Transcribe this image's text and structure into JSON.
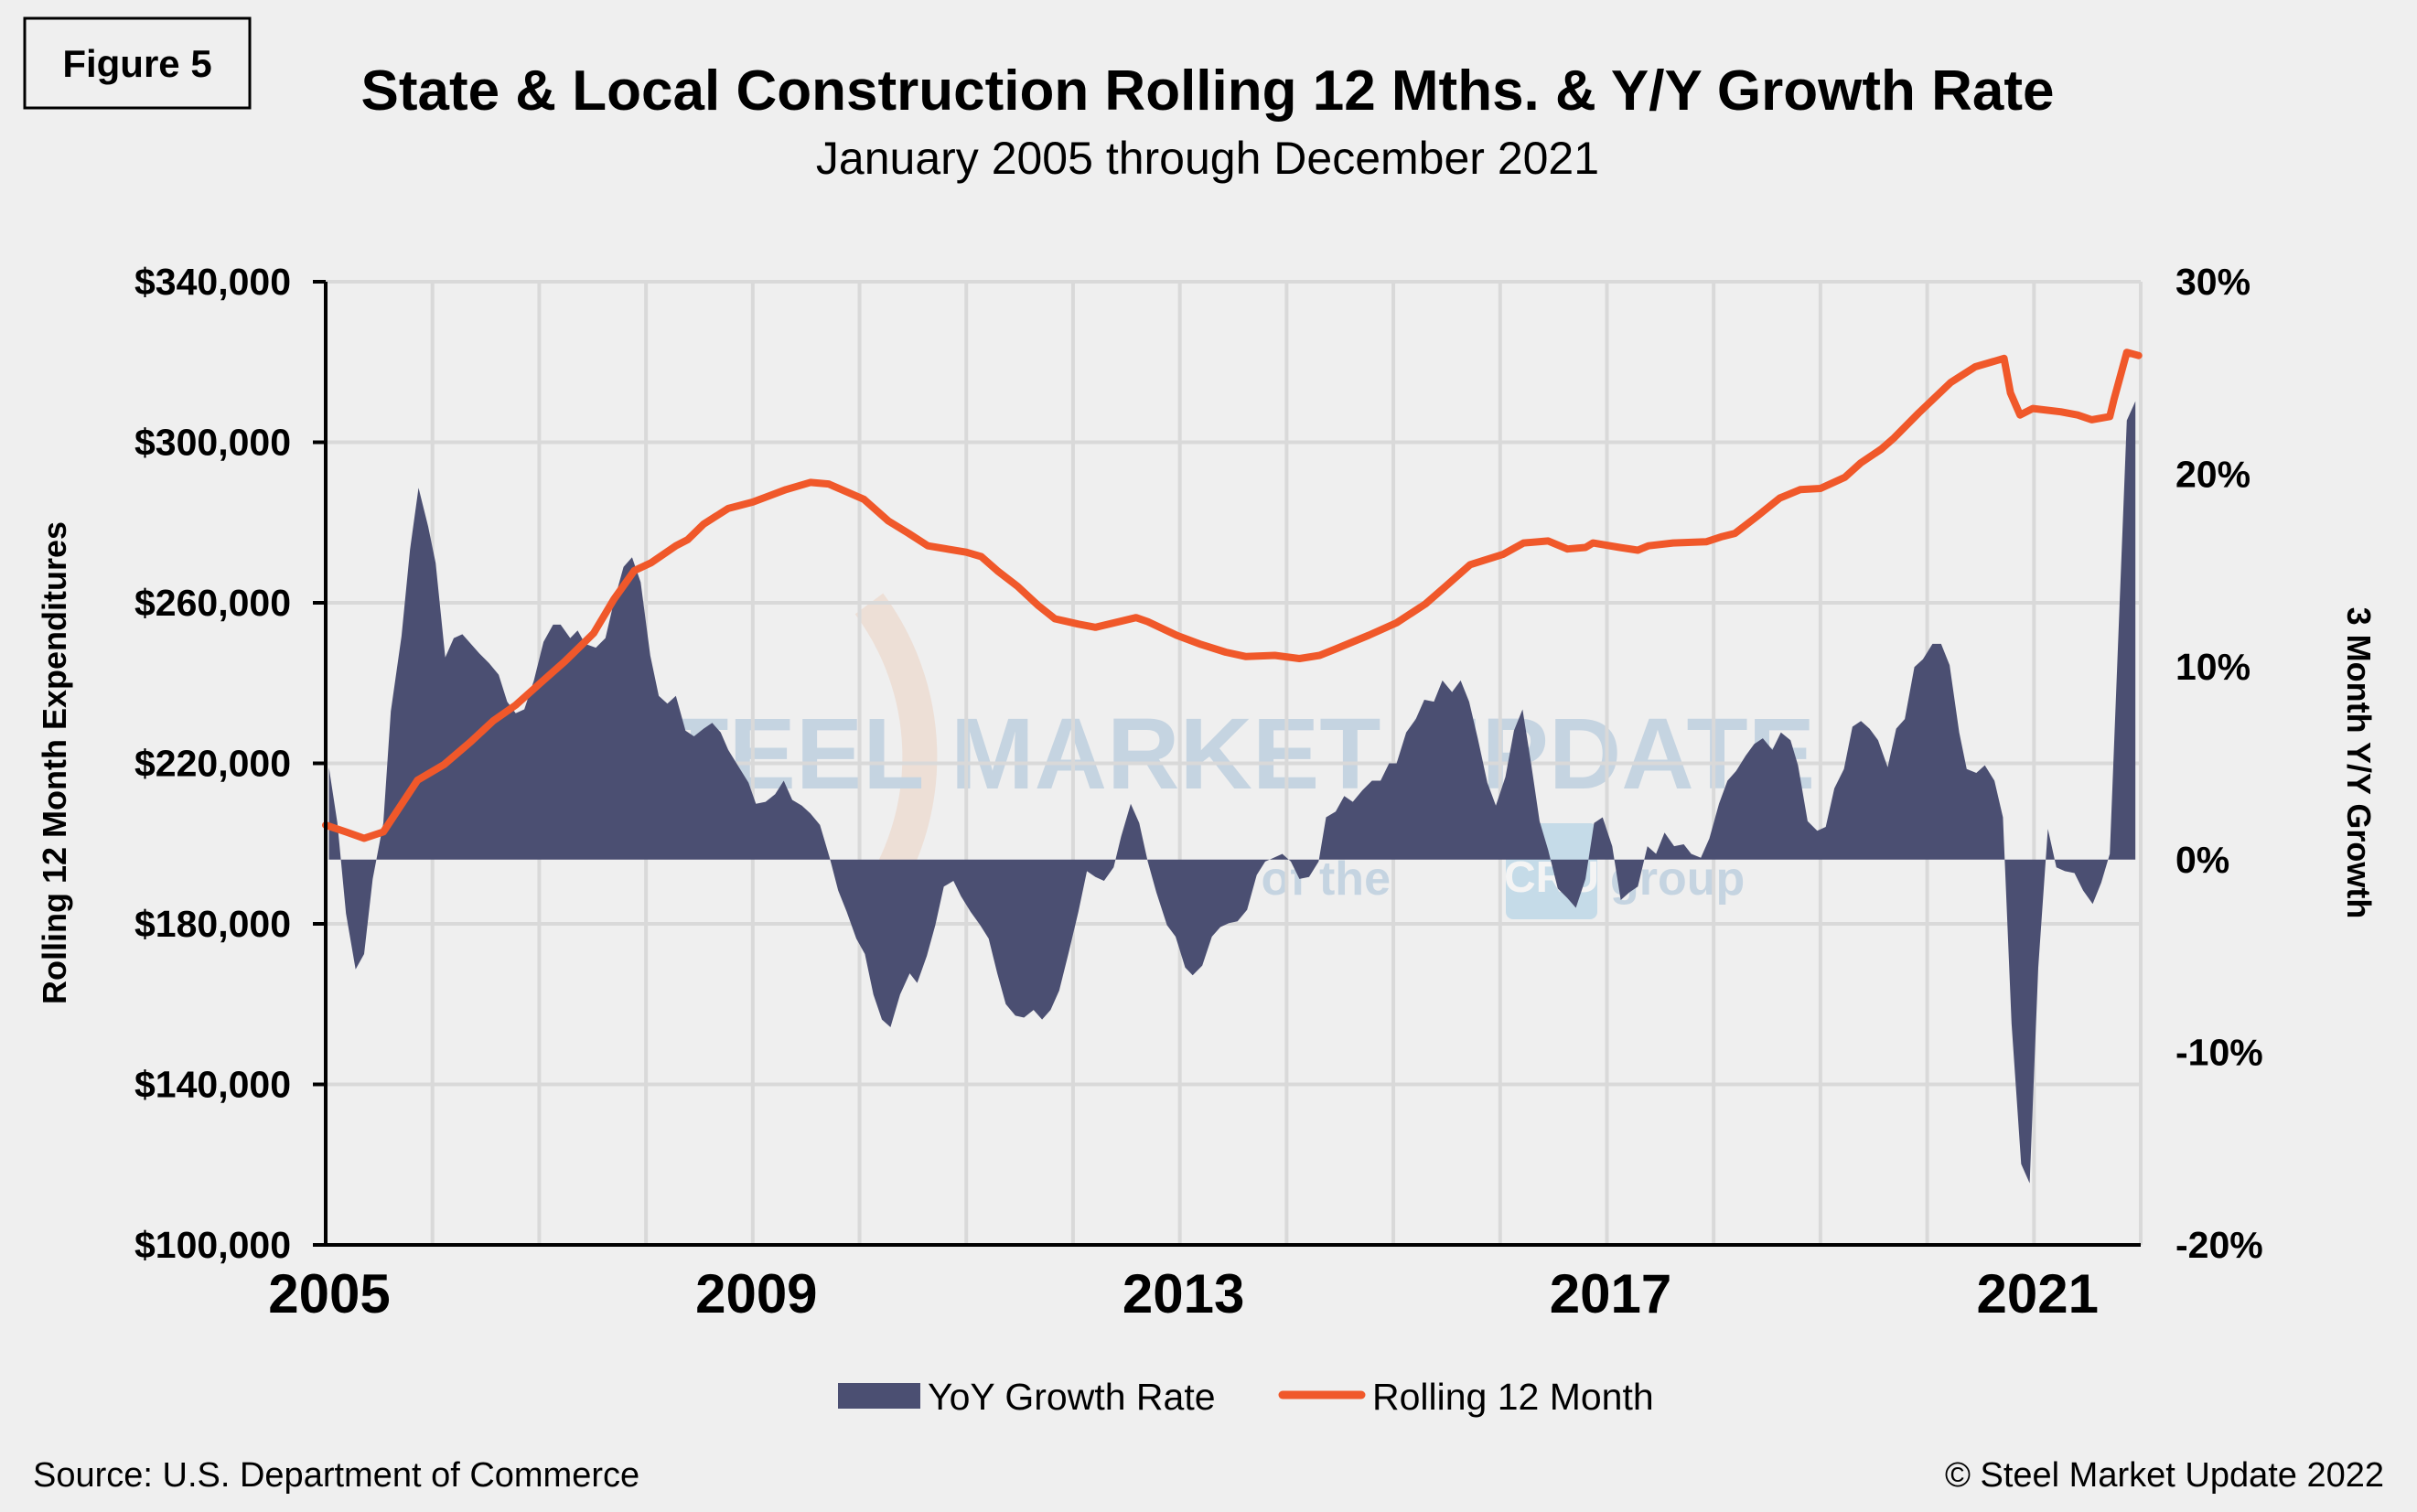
{
  "figure_label": "Figure 5",
  "footer": {
    "source": "Source: U.S. Department of Commerce",
    "copyright": "© Steel Market Update 2022"
  },
  "watermark": {
    "line1": "STEEL MARKET UPDATE",
    "line2": "part of the",
    "badge": "CRU",
    "line3": "group"
  },
  "colors": {
    "background": "#efefef",
    "area": "#4b4f72",
    "line": "#f0582a",
    "grid": "#d9d9d9"
  },
  "chart_data": {
    "type": "area+line",
    "title": "State & Local Construction Rolling 12 Mths. & Y/Y Growth Rate",
    "subtitle": "January 2005 through December 2021",
    "ylabel": "Rolling 12 Month Expenditures",
    "y2label": "3 Month Y/Y Growth",
    "xlim": [
      2005,
      2022
    ],
    "ylim": [
      100000,
      340000
    ],
    "y2lim": [
      -20,
      30
    ],
    "grid": true,
    "legend_position": "bottom",
    "x_tick_labels": [
      "2005",
      "2009",
      "2013",
      "2017",
      "2021"
    ],
    "x_tick_values": [
      2005,
      2009,
      2013,
      2017,
      2021
    ],
    "y_tick_labels": [
      "$340,000",
      "$300,000",
      "$260,000",
      "$220,000",
      "$180,000",
      "$140,000",
      "$100,000"
    ],
    "y_tick_values": [
      340000,
      300000,
      260000,
      220000,
      180000,
      140000,
      100000
    ],
    "y2_tick_labels": [
      "30%",
      "20%",
      "10%",
      "0%",
      "-10%",
      "-20%"
    ],
    "y2_tick_values": [
      30,
      20,
      10,
      0,
      -10,
      -20
    ],
    "series": [
      {
        "name": "YoY Growth Rate",
        "type": "area",
        "axis": "right",
        "unit": "%",
        "x": [
          2005.03,
          2005.11,
          2005.19,
          2005.28,
          2005.36,
          2005.44,
          2005.54,
          2005.61,
          2005.71,
          2005.79,
          2005.87,
          2005.96,
          2006.03,
          2006.12,
          2006.2,
          2006.28,
          2006.44,
          2006.53,
          2006.62,
          2006.7,
          2006.78,
          2006.86,
          2006.95,
          2007.04,
          2007.13,
          2007.2,
          2007.29,
          2007.36,
          2007.43,
          2007.53,
          2007.62,
          2007.7,
          2007.79,
          2007.87,
          2007.95,
          2008.04,
          2008.12,
          2008.2,
          2008.28,
          2008.37,
          2008.45,
          2008.54,
          2008.62,
          2008.7,
          2008.77,
          2008.87,
          2008.96,
          2009.03,
          2009.12,
          2009.21,
          2009.29,
          2009.37,
          2009.46,
          2009.54,
          2009.63,
          2009.72,
          2009.8,
          2009.88,
          2009.97,
          2010.05,
          2010.13,
          2010.21,
          2010.29,
          2010.38,
          2010.47,
          2010.54,
          2010.63,
          2010.71,
          2010.79,
          2010.88,
          2010.95,
          2011.04,
          2011.13,
          2011.21,
          2011.29,
          2011.37,
          2011.46,
          2011.54,
          2011.63,
          2011.71,
          2011.79,
          2011.87,
          2011.96,
          2012.05,
          2012.13,
          2012.21,
          2012.29,
          2012.38,
          2012.45,
          2012.54,
          2012.62,
          2012.7,
          2012.78,
          2012.88,
          2012.96,
          2013.05,
          2013.12,
          2013.21,
          2013.3,
          2013.38,
          2013.46,
          2013.54,
          2013.63,
          2013.72,
          2013.8,
          2013.88,
          2013.96,
          2014.04,
          2014.12,
          2014.21,
          2014.3,
          2014.37,
          2014.46,
          2014.54,
          2014.62,
          2014.71,
          2014.8,
          2014.88,
          2014.96,
          2015.03,
          2015.12,
          2015.21,
          2015.29,
          2015.38,
          2015.46,
          2015.55,
          2015.63,
          2015.71,
          2015.79,
          2015.88,
          2015.96,
          2016.05,
          2016.13,
          2016.21,
          2016.29,
          2016.37,
          2016.45,
          2016.54,
          2016.63,
          2016.71,
          2016.8,
          2016.88,
          2016.96,
          2017.05,
          2017.13,
          2017.21,
          2017.29,
          2017.38,
          2017.46,
          2017.54,
          2017.63,
          2017.72,
          2017.79,
          2017.88,
          2017.96,
          2018.05,
          2018.13,
          2018.21,
          2018.3,
          2018.38,
          2018.46,
          2018.55,
          2018.63,
          2018.72,
          2018.79,
          2018.88,
          2018.97,
          2019.05,
          2019.13,
          2019.22,
          2019.3,
          2019.38,
          2019.46,
          2019.54,
          2019.63,
          2019.71,
          2019.79,
          2019.88,
          2019.96,
          2020.05,
          2020.13,
          2020.21,
          2020.3,
          2020.37,
          2020.46,
          2020.54,
          2020.63,
          2020.71,
          2020.79,
          2020.88,
          2020.96,
          2021.04,
          2021.13,
          2021.21,
          2021.29,
          2021.38,
          2021.46,
          2021.55,
          2021.63,
          2021.71,
          2021.87,
          2021.95
        ],
        "values": [
          4.8,
          1.9,
          -2.8,
          -5.7,
          -4.9,
          -1.0,
          1.9,
          7.7,
          11.6,
          16.1,
          19.3,
          17.3,
          15.4,
          10.5,
          11.5,
          11.7,
          10.7,
          10.2,
          9.6,
          8.2,
          7.6,
          7.8,
          9.3,
          11.3,
          12.2,
          12.2,
          11.5,
          11.9,
          11.2,
          11.0,
          11.5,
          13.4,
          15.2,
          15.7,
          14.4,
          10.6,
          8.5,
          8.1,
          8.5,
          6.7,
          6.4,
          6.8,
          7.1,
          6.6,
          5.7,
          4.8,
          4.0,
          2.9,
          3.0,
          3.4,
          4.1,
          3.1,
          2.8,
          2.4,
          1.8,
          0.1,
          -1.6,
          -2.7,
          -4.1,
          -4.9,
          -7.0,
          -8.3,
          -8.7,
          -7.0,
          -5.9,
          -6.4,
          -5.0,
          -3.4,
          -1.4,
          -1.1,
          -1.9,
          -2.7,
          -3.4,
          -4.1,
          -5.9,
          -7.5,
          -8.1,
          -8.2,
          -7.8,
          -8.3,
          -7.8,
          -6.8,
          -4.8,
          -2.7,
          -0.6,
          -0.9,
          -1.1,
          -0.4,
          1.2,
          2.9,
          1.9,
          -0.1,
          -1.7,
          -3.4,
          -4.0,
          -5.6,
          -6.0,
          -5.5,
          -4.0,
          -3.5,
          -3.3,
          -3.2,
          -2.6,
          -0.8,
          -0.1,
          0.1,
          0.3,
          -0.1,
          -1.0,
          -0.9,
          -0.1,
          2.2,
          2.5,
          3.3,
          3.0,
          3.6,
          4.1,
          4.1,
          5.0,
          5.0,
          6.6,
          7.3,
          8.3,
          8.2,
          9.3,
          8.7,
          9.3,
          8.2,
          6.3,
          4.0,
          2.8,
          4.3,
          6.7,
          7.8,
          5.0,
          2.0,
          0.5,
          -1.5,
          -2.0,
          -2.5,
          -1.0,
          1.9,
          2.2,
          0.7,
          -2.1,
          -1.7,
          -1.4,
          0.7,
          0.3,
          1.4,
          0.7,
          0.8,
          0.3,
          0.1,
          1.1,
          2.9,
          4.1,
          4.6,
          5.4,
          6.0,
          6.3,
          5.7,
          6.6,
          6.2,
          4.9,
          2.0,
          1.5,
          1.7,
          3.7,
          4.7,
          6.9,
          7.2,
          6.8,
          6.2,
          4.8,
          6.8,
          7.3,
          10.0,
          10.4,
          11.2,
          11.2,
          10.1,
          6.6,
          4.7,
          4.5,
          4.9,
          4.1,
          2.2,
          -8.5,
          -15.8,
          -16.8,
          -5.6,
          1.6,
          -0.4,
          -0.6,
          -0.7,
          -1.6,
          -2.3,
          -1.2,
          0.3,
          22.8,
          23.8
        ]
      },
      {
        "name": "Rolling 12 Month",
        "type": "line",
        "axis": "left",
        "unit": "$ (thousands)",
        "x": [
          2005.0,
          2005.19,
          2005.36,
          2005.54,
          2005.86,
          2006.11,
          2006.36,
          2006.57,
          2006.78,
          2007.01,
          2007.24,
          2007.51,
          2007.7,
          2007.89,
          2008.05,
          2008.28,
          2008.39,
          2008.54,
          2008.77,
          2009.0,
          2009.31,
          2009.54,
          2009.71,
          2010.04,
          2010.27,
          2010.46,
          2010.64,
          2011.0,
          2011.14,
          2011.29,
          2011.48,
          2011.67,
          2011.83,
          2012.05,
          2012.21,
          2012.59,
          2012.7,
          2012.97,
          2013.2,
          2013.43,
          2013.62,
          2013.89,
          2014.12,
          2014.31,
          2014.46,
          2014.77,
          2015.03,
          2015.3,
          2015.49,
          2015.72,
          2016.03,
          2016.22,
          2016.45,
          2016.63,
          2016.8,
          2016.87,
          2017.12,
          2017.29,
          2017.39,
          2017.62,
          2017.93,
          2018.08,
          2018.2,
          2018.39,
          2018.62,
          2018.81,
          2019.0,
          2019.23,
          2019.38,
          2019.57,
          2019.69,
          2019.92,
          2020.22,
          2020.45,
          2020.72,
          2020.78,
          2020.87,
          2020.99,
          2021.25,
          2021.41,
          2021.54,
          2021.71,
          2021.75,
          2021.87,
          2021.98
        ],
        "values": [
          204.6,
          202.9,
          201.3,
          202.9,
          215.8,
          219.7,
          225.4,
          230.6,
          234.5,
          240.0,
          245.4,
          252.4,
          260.9,
          268.0,
          270.0,
          274.2,
          275.7,
          279.6,
          283.5,
          285.1,
          288.2,
          290.0,
          289.6,
          285.8,
          280.4,
          277.3,
          274.2,
          272.6,
          271.5,
          268.0,
          264.1,
          259.4,
          256.0,
          254.7,
          253.9,
          256.3,
          255.3,
          251.9,
          249.6,
          247.7,
          246.6,
          246.9,
          246.1,
          246.9,
          248.5,
          251.9,
          255.0,
          259.7,
          264.1,
          269.5,
          272.1,
          274.9,
          275.4,
          273.4,
          273.8,
          274.9,
          273.8,
          273.1,
          274.2,
          274.9,
          275.2,
          276.5,
          277.3,
          281.2,
          286.1,
          288.2,
          288.5,
          291.3,
          294.9,
          298.3,
          301.1,
          307.3,
          314.9,
          318.8,
          320.9,
          312.3,
          306.8,
          308.4,
          307.6,
          306.8,
          305.6,
          306.4,
          310.7,
          322.4,
          321.6
        ]
      }
    ]
  }
}
